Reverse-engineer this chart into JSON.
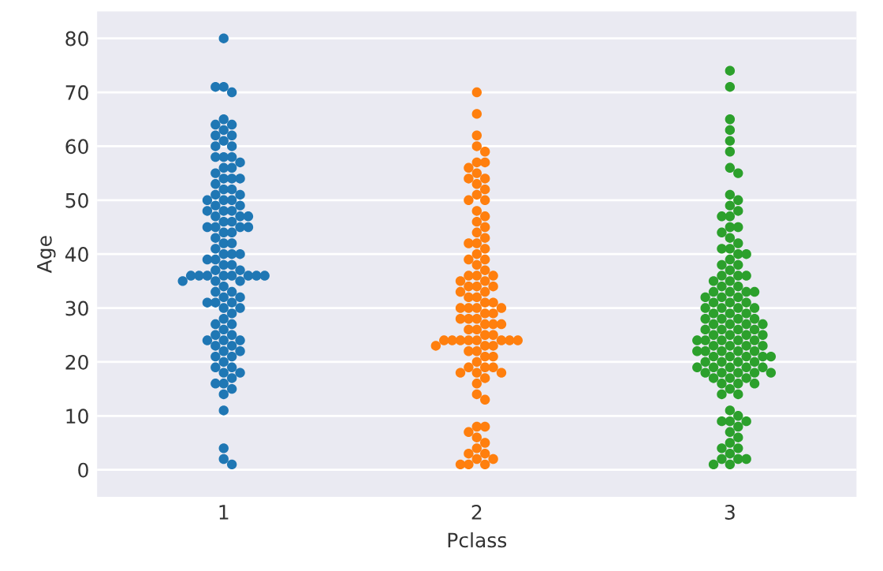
{
  "chart_data": {
    "type": "scatter",
    "xlabel": "Pclass",
    "ylabel": "Age",
    "categories": [
      "1",
      "2",
      "3"
    ],
    "ylim": [
      -5,
      85
    ],
    "yticks": [
      0,
      10,
      20,
      30,
      40,
      50,
      60,
      70,
      80
    ],
    "grid": "y",
    "marker": "circle",
    "series": [
      {
        "color": "#1f77b4",
        "x": [
          "1",
          "1",
          "1",
          "1",
          "1",
          "1",
          "1",
          "1",
          "1",
          "1",
          "1",
          "1",
          "1",
          "1",
          "1",
          "1",
          "1",
          "1",
          "1",
          "1",
          "1",
          "1",
          "1",
          "1",
          "1",
          "1",
          "1",
          "1",
          "1",
          "1",
          "1",
          "1",
          "1",
          "1",
          "1",
          "1",
          "1",
          "1",
          "1",
          "1",
          "1",
          "1",
          "1",
          "1",
          "1",
          "1",
          "1",
          "1",
          "1",
          "1",
          "1",
          "1",
          "1",
          "1",
          "1",
          "1",
          "1",
          "1",
          "1",
          "1",
          "1",
          "1",
          "1",
          "1",
          "1",
          "1",
          "1",
          "1",
          "1",
          "1",
          "1",
          "1",
          "1",
          "1",
          "1",
          "1",
          "1",
          "1",
          "1",
          "1",
          "1",
          "1",
          "1",
          "1",
          "1",
          "1",
          "1",
          "1",
          "1",
          "1",
          "1",
          "1",
          "1",
          "1",
          "1",
          "1",
          "1",
          "1",
          "1",
          "1",
          "1",
          "1",
          "1",
          "1",
          "1",
          "1",
          "1",
          "1",
          "1",
          "1",
          "1"
        ],
        "values": [
          80,
          71,
          70,
          71,
          65,
          64,
          64,
          63,
          62,
          62,
          61,
          60,
          60,
          58,
          58,
          58,
          57,
          56,
          56,
          55,
          54,
          54,
          54,
          53,
          52,
          52,
          51,
          51,
          50,
          50,
          50,
          49,
          49,
          48,
          48,
          48,
          47,
          47,
          47,
          46,
          46,
          45,
          45,
          45,
          45,
          44,
          44,
          43,
          42,
          42,
          41,
          40,
          40,
          40,
          39,
          39,
          38,
          38,
          37,
          37,
          36,
          36,
          36,
          36,
          36,
          36,
          36,
          36,
          35,
          35,
          35,
          34,
          33,
          33,
          32,
          32,
          31,
          31,
          31,
          30,
          30,
          29,
          28,
          27,
          27,
          26,
          25,
          25,
          24,
          24,
          24,
          23,
          23,
          22,
          22,
          21,
          21,
          20,
          19,
          19,
          18,
          18,
          17,
          16,
          16,
          15,
          14,
          11,
          4,
          2,
          1
        ]
      },
      {
        "color": "#ff7f0e",
        "x": [
          "2",
          "2",
          "2",
          "2",
          "2",
          "2",
          "2",
          "2",
          "2",
          "2",
          "2",
          "2",
          "2",
          "2",
          "2",
          "2",
          "2",
          "2",
          "2",
          "2",
          "2",
          "2",
          "2",
          "2",
          "2",
          "2",
          "2",
          "2",
          "2",
          "2",
          "2",
          "2",
          "2",
          "2",
          "2",
          "2",
          "2",
          "2",
          "2",
          "2",
          "2",
          "2",
          "2",
          "2",
          "2",
          "2",
          "2",
          "2",
          "2",
          "2",
          "2",
          "2",
          "2",
          "2",
          "2",
          "2",
          "2",
          "2",
          "2",
          "2",
          "2",
          "2",
          "2",
          "2",
          "2",
          "2",
          "2",
          "2",
          "2",
          "2",
          "2",
          "2",
          "2",
          "2",
          "2",
          "2",
          "2",
          "2",
          "2",
          "2",
          "2",
          "2",
          "2",
          "2",
          "2",
          "2",
          "2",
          "2",
          "2",
          "2",
          "2",
          "2",
          "2",
          "2",
          "2",
          "2",
          "2",
          "2",
          "2"
        ],
        "values": [
          70,
          66,
          62,
          60,
          59,
          57,
          57,
          56,
          55,
          54,
          54,
          53,
          52,
          51,
          50,
          50,
          48,
          47,
          46,
          45,
          44,
          43,
          42,
          42,
          41,
          40,
          39,
          39,
          38,
          37,
          36,
          36,
          36,
          35,
          35,
          34,
          34,
          34,
          33,
          33,
          32,
          32,
          31,
          31,
          30,
          30,
          30,
          30,
          29,
          29,
          28,
          28,
          28,
          27,
          27,
          27,
          26,
          26,
          25,
          25,
          24,
          24,
          24,
          24,
          24,
          24,
          24,
          24,
          23,
          23,
          23,
          22,
          22,
          21,
          21,
          20,
          19,
          19,
          19,
          18,
          18,
          18,
          17,
          16,
          14,
          13,
          8,
          8,
          7,
          6,
          5,
          4,
          3,
          3,
          2,
          2,
          1,
          1,
          1
        ]
      },
      {
        "color": "#2ca02c",
        "x": [
          "3",
          "3",
          "3",
          "3",
          "3",
          "3",
          "3",
          "3",
          "3",
          "3",
          "3",
          "3",
          "3",
          "3",
          "3",
          "3",
          "3",
          "3",
          "3",
          "3",
          "3",
          "3",
          "3",
          "3",
          "3",
          "3",
          "3",
          "3",
          "3",
          "3",
          "3",
          "3",
          "3",
          "3",
          "3",
          "3",
          "3",
          "3",
          "3",
          "3",
          "3",
          "3",
          "3",
          "3",
          "3",
          "3",
          "3",
          "3",
          "3",
          "3",
          "3",
          "3",
          "3",
          "3",
          "3",
          "3",
          "3",
          "3",
          "3",
          "3",
          "3",
          "3",
          "3",
          "3",
          "3",
          "3",
          "3",
          "3",
          "3",
          "3",
          "3",
          "3",
          "3",
          "3",
          "3",
          "3",
          "3",
          "3",
          "3",
          "3",
          "3",
          "3",
          "3",
          "3",
          "3",
          "3",
          "3",
          "3",
          "3",
          "3",
          "3",
          "3",
          "3",
          "3",
          "3",
          "3",
          "3",
          "3",
          "3",
          "3",
          "3",
          "3",
          "3",
          "3",
          "3",
          "3",
          "3",
          "3",
          "3",
          "3",
          "3",
          "3",
          "3",
          "3",
          "3",
          "3",
          "3",
          "3",
          "3",
          "3",
          "3",
          "3",
          "3",
          "3",
          "3",
          "3"
        ],
        "values": [
          74,
          71,
          65,
          63,
          61,
          59,
          56,
          55,
          51,
          50,
          49,
          48,
          47,
          47,
          45,
          45,
          44,
          43,
          42,
          41,
          41,
          40,
          40,
          39,
          38,
          38,
          37,
          36,
          36,
          36,
          35,
          35,
          34,
          34,
          33,
          33,
          33,
          33,
          32,
          32,
          32,
          31,
          31,
          31,
          30,
          30,
          30,
          30,
          29,
          29,
          29,
          28,
          28,
          28,
          28,
          27,
          27,
          27,
          27,
          26,
          26,
          26,
          26,
          25,
          25,
          25,
          25,
          24,
          24,
          24,
          24,
          24,
          23,
          23,
          23,
          23,
          22,
          22,
          22,
          22,
          22,
          21,
          21,
          21,
          21,
          21,
          20,
          20,
          20,
          20,
          19,
          19,
          19,
          19,
          19,
          18,
          18,
          18,
          18,
          18,
          17,
          17,
          17,
          16,
          16,
          16,
          15,
          14,
          14,
          11,
          10,
          9,
          9,
          9,
          8,
          7,
          6,
          5,
          4,
          4,
          3,
          2,
          2,
          2,
          1,
          1
        ]
      }
    ]
  }
}
